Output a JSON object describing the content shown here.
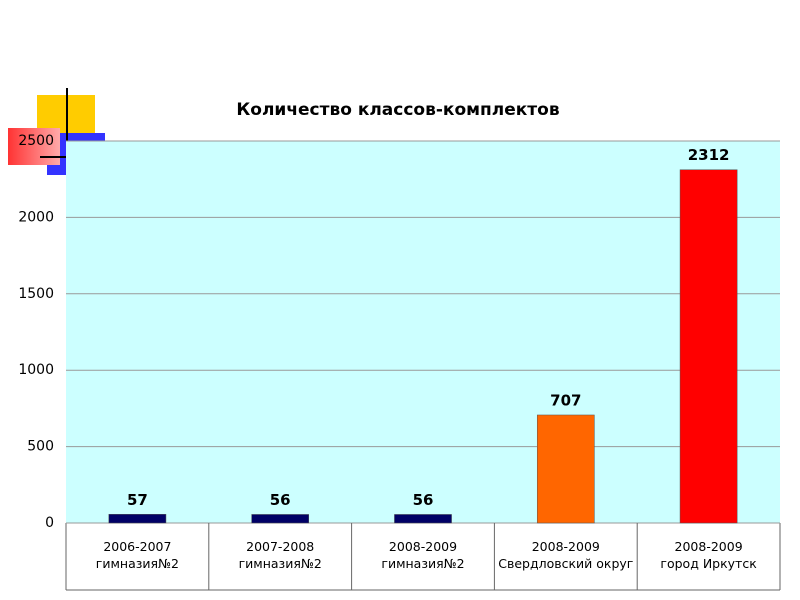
{
  "chart_data": {
    "type": "bar",
    "title": "Количество классов-комплектов",
    "categories": [
      "2006-2007\nгимназия№2",
      "2007-2008\nгимназия№2",
      "2008-2009\nгимназия№2",
      "2008-2009\nСвердловский округ",
      "2008-2009\nгород Иркутск"
    ],
    "values": [
      57,
      56,
      56,
      707,
      2312
    ],
    "colors": [
      "#000066",
      "#000066",
      "#000066",
      "#ff6600",
      "#ff0000"
    ],
    "ylim": [
      0,
      2500
    ],
    "yticks": [
      0,
      500,
      1000,
      1500,
      2000,
      2500
    ],
    "grid": true
  }
}
